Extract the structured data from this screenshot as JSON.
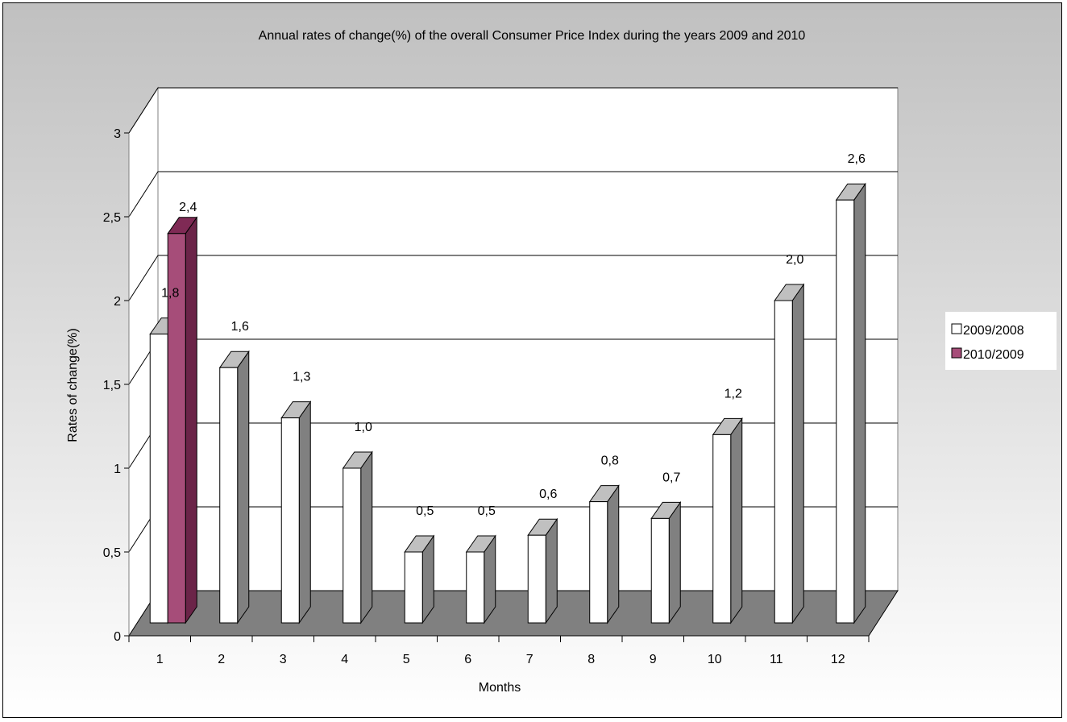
{
  "chart_data": {
    "type": "bar",
    "title": "Annual rates of change(%) of the overall Consumer Price Index during the years 2009 and 2010",
    "xlabel": "Months",
    "ylabel": "Rates of change(%)",
    "categories": [
      "1",
      "2",
      "3",
      "4",
      "5",
      "6",
      "7",
      "8",
      "9",
      "10",
      "11",
      "12"
    ],
    "ylim": [
      0,
      3
    ],
    "yticks": [
      0,
      0.5,
      1,
      1.5,
      2,
      2.5,
      3
    ],
    "ytick_labels": [
      "0",
      "0,5",
      "1",
      "1,5",
      "2",
      "2,5",
      "3"
    ],
    "grid": true,
    "legend_position": "right",
    "series": [
      {
        "name": "2009/2008",
        "values": [
          1.8,
          1.6,
          1.3,
          1.0,
          0.5,
          0.5,
          0.6,
          0.8,
          0.7,
          1.2,
          2.0,
          2.6
        ],
        "labels": [
          "1,8",
          "1,6",
          "1,3",
          "1,0",
          "0,5",
          "0,5",
          "0,6",
          "0,8",
          "0,7",
          "1,2",
          "2,0",
          "2,6"
        ],
        "color": "#ffffff"
      },
      {
        "name": "2010/2009",
        "values": [
          2.4,
          null,
          null,
          null,
          null,
          null,
          null,
          null,
          null,
          null,
          null,
          null
        ],
        "labels": [
          "2,4",
          "",
          "",
          "",
          "",
          "",
          "",
          "",
          "",
          "",
          "",
          ""
        ],
        "color": "#993366"
      }
    ],
    "colors": {
      "wall": "#ffffff",
      "floor": "#808080",
      "bar_side": "#808080",
      "bar_top": "#c0c0c0",
      "series2_front": "#a64d79",
      "series2_side": "#6b2448",
      "series2_top": "#7f2a55"
    }
  }
}
